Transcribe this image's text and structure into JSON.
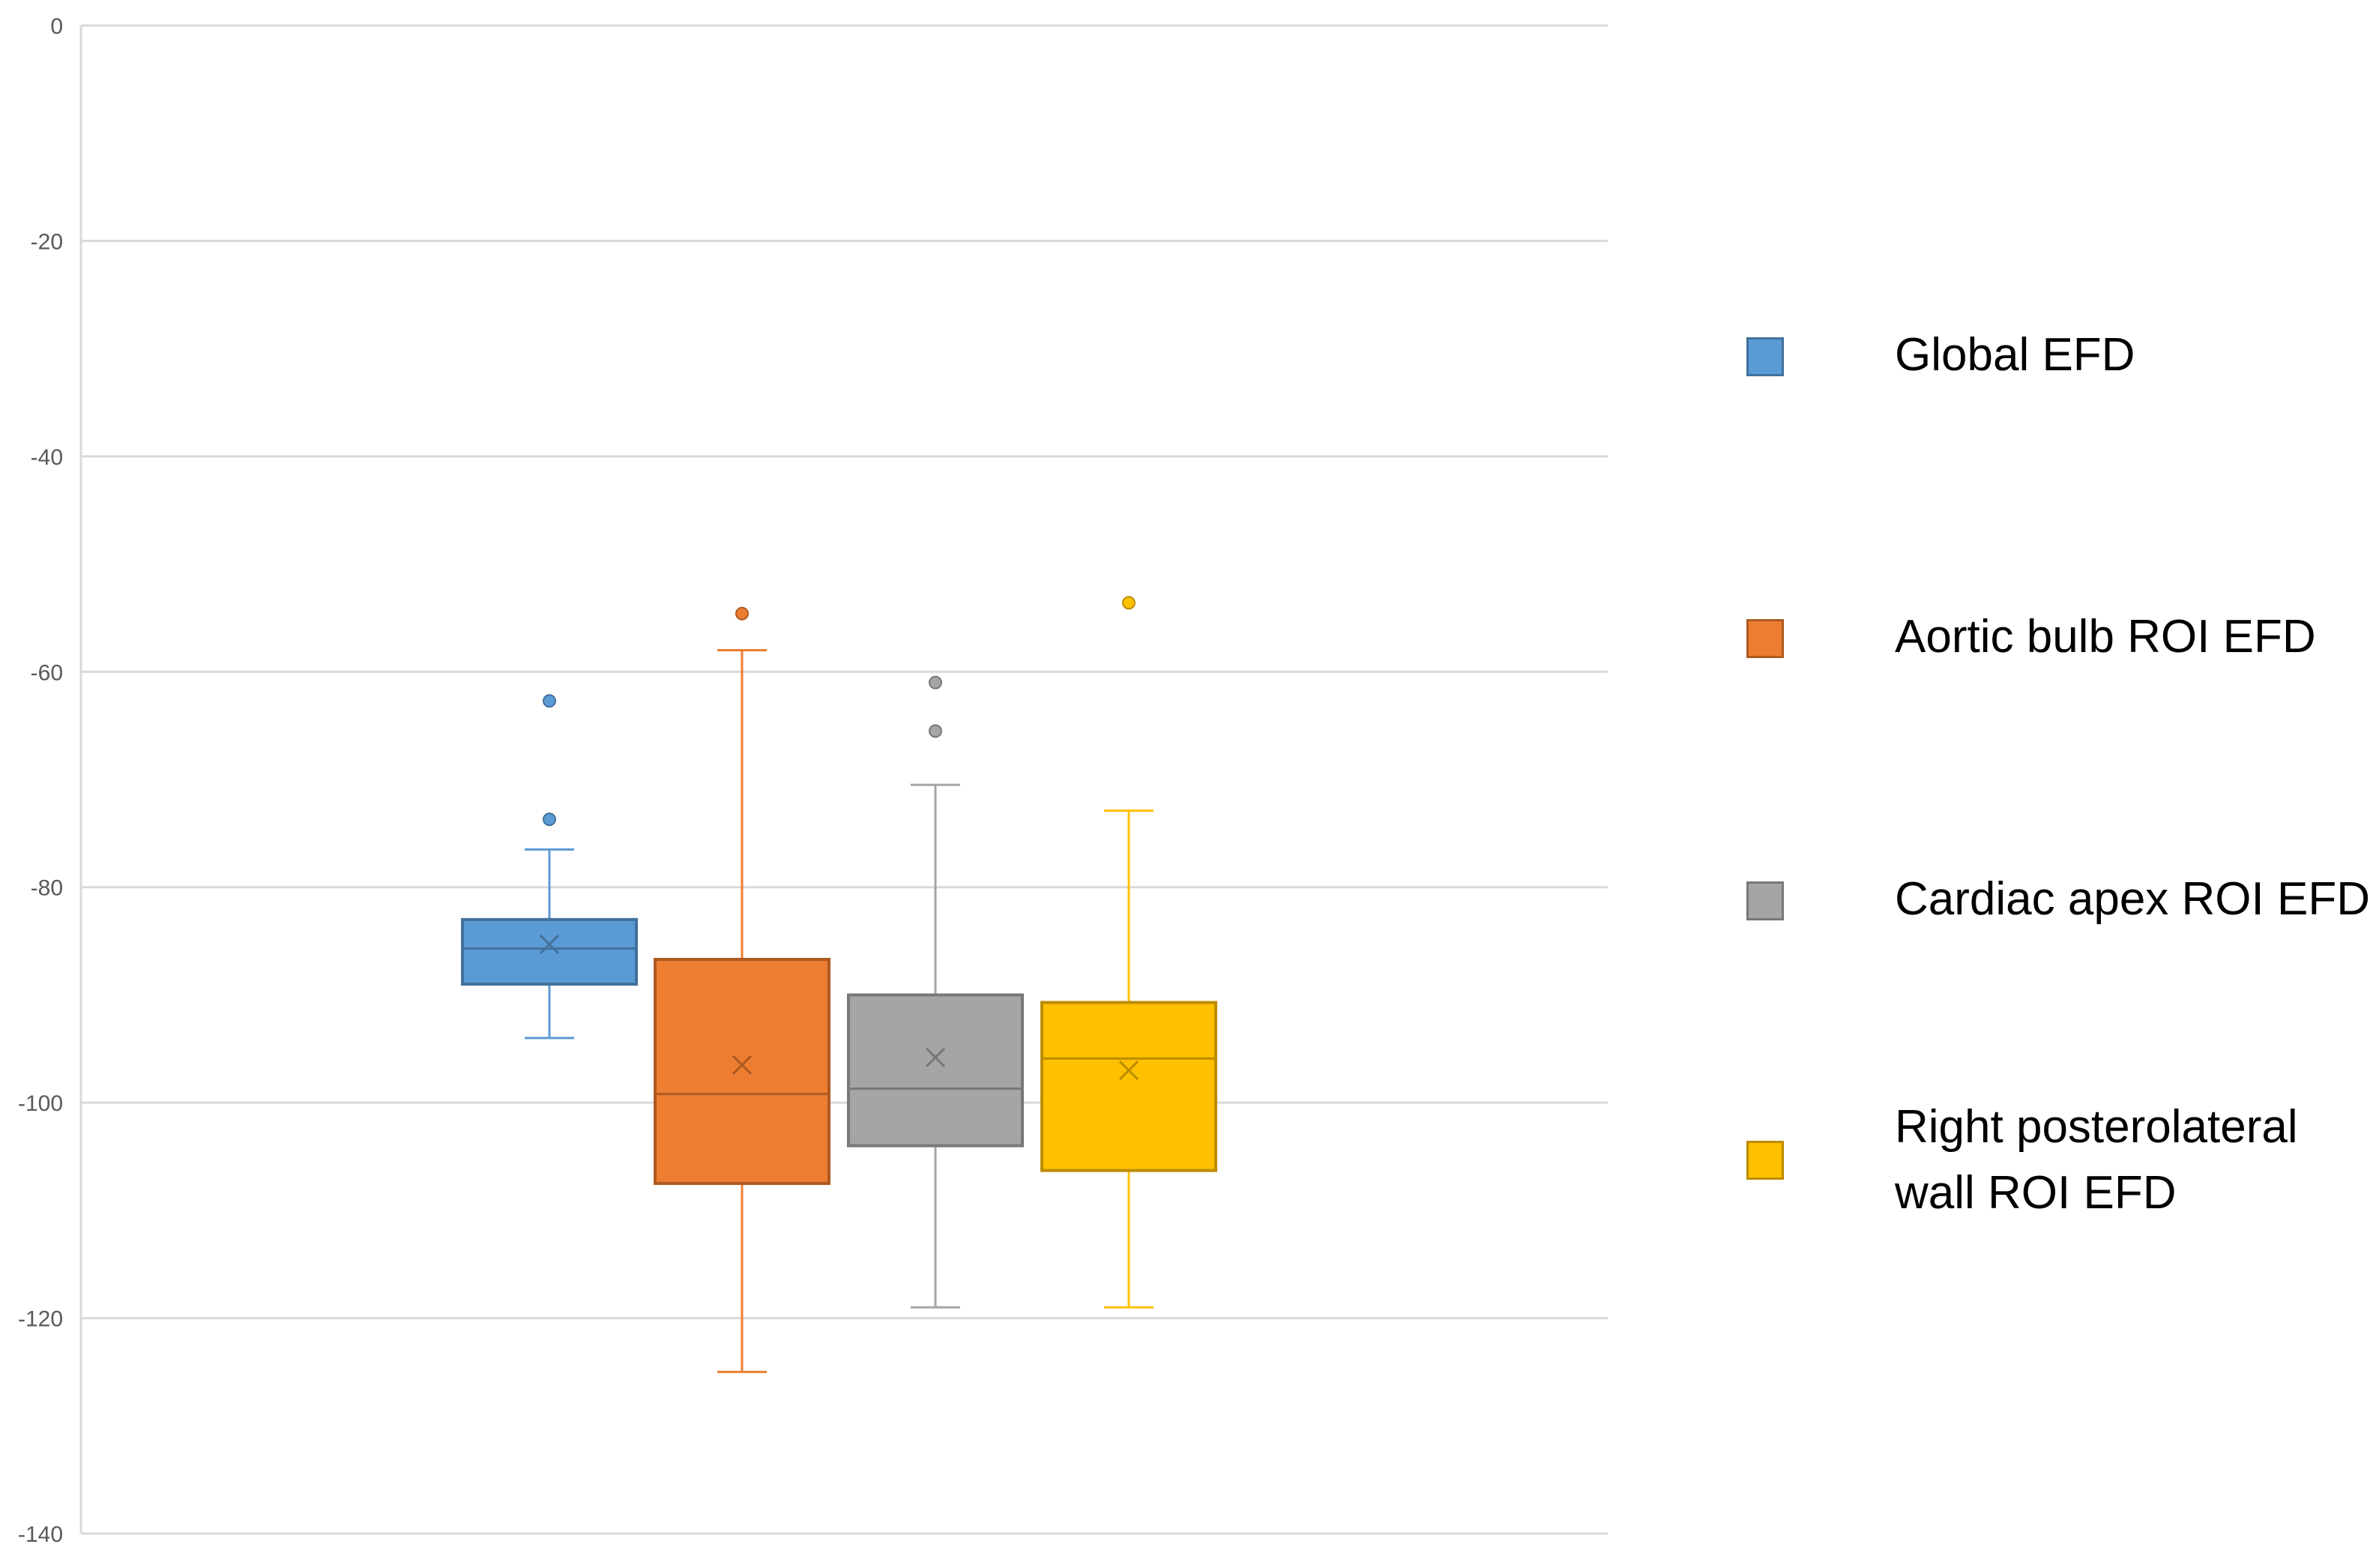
{
  "chart_data": {
    "type": "boxplot",
    "title": "",
    "xlabel": "",
    "ylabel": "",
    "ylim": [
      -140,
      0
    ],
    "yticks": [
      0,
      -20,
      -40,
      -60,
      -80,
      -100,
      -120,
      -140
    ],
    "tick_labels": [
      "0",
      "-20",
      "-40",
      "-60",
      "-80",
      "-100",
      "-120",
      "-140"
    ],
    "grid": true,
    "legend_position": "right",
    "series": [
      {
        "name": "Global EFD",
        "fill": "#5B9BD5",
        "stroke": "#41719C",
        "min": -94,
        "q1": -89,
        "median": -85.7,
        "q3": -83,
        "max": -76.5,
        "mean": -85.3,
        "outliers": [
          -73.7,
          -62.7
        ]
      },
      {
        "name": "Aortic bulb ROI EFD",
        "fill": "#ED7D31",
        "stroke": "#AE5A21",
        "min": -125,
        "q1": -107.5,
        "median": -99.2,
        "q3": -86.7,
        "max": -58,
        "mean": -96.5,
        "outliers": [
          -54.6
        ]
      },
      {
        "name": "Cardiac apex ROI EFD",
        "fill": "#A5A5A5",
        "stroke": "#787878",
        "min": -119,
        "q1": -104,
        "median": -98.7,
        "q3": -90,
        "max": -70.5,
        "mean": -95.8,
        "outliers": [
          -65.5,
          -61
        ]
      },
      {
        "name": "Right posterolateral wall  ROI EFD",
        "fill": "#FFC000",
        "stroke": "#BC8C00",
        "min": -119,
        "q1": -106.3,
        "median": -95.9,
        "q3": -90.7,
        "max": -72.9,
        "mean": -97,
        "outliers": [
          -53.6
        ]
      }
    ]
  }
}
